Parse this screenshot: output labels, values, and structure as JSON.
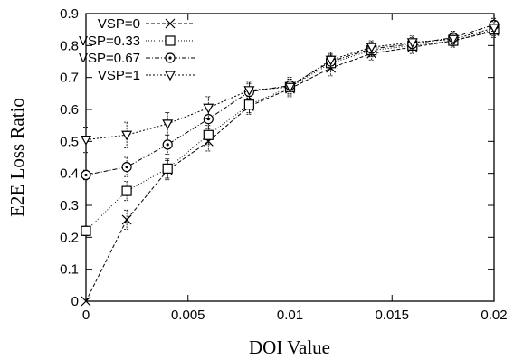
{
  "chart_data": {
    "type": "line",
    "title": "",
    "xlabel": "DOI Value",
    "ylabel": "E2E Loss Ratio",
    "xlim": [
      0,
      0.02
    ],
    "ylim": [
      0,
      0.9
    ],
    "x_ticks": [
      "0",
      "0.005",
      "0.01",
      "0.015",
      "0.02"
    ],
    "x_tick_values": [
      0,
      0.005,
      0.01,
      0.015,
      0.02
    ],
    "y_ticks": [
      "0",
      "0.1",
      "0.2",
      "0.3",
      "0.4",
      "0.5",
      "0.6",
      "0.7",
      "0.8",
      "0.9"
    ],
    "y_tick_values": [
      0,
      0.1,
      0.2,
      0.3,
      0.4,
      0.5,
      0.6,
      0.7,
      0.8,
      0.9
    ],
    "grid": false,
    "legend_position": "top-left",
    "x": [
      0,
      0.002,
      0.004,
      0.006,
      0.008,
      0.01,
      0.012,
      0.014,
      0.016,
      0.018,
      0.02
    ],
    "series": [
      {
        "name": "VSP=0",
        "marker": "x",
        "dash": "4,2",
        "values": [
          0.0,
          0.255,
          0.41,
          0.5,
          0.61,
          0.665,
          0.73,
          0.775,
          0.795,
          0.815,
          0.845
        ],
        "errors": [
          0.0,
          0.03,
          0.03,
          0.03,
          0.025,
          0.025,
          0.025,
          0.02,
          0.02,
          0.02,
          0.02
        ]
      },
      {
        "name": "VSP=0.33",
        "marker": "square",
        "dash": "1,2",
        "values": [
          0.22,
          0.345,
          0.415,
          0.52,
          0.615,
          0.67,
          0.745,
          0.785,
          0.8,
          0.815,
          0.85
        ],
        "errors": [
          0.015,
          0.03,
          0.03,
          0.03,
          0.025,
          0.025,
          0.025,
          0.02,
          0.02,
          0.02,
          0.02
        ]
      },
      {
        "name": "VSP=0.67",
        "marker": "circle",
        "dash": "5,2,1,2",
        "values": [
          0.395,
          0.42,
          0.49,
          0.57,
          0.655,
          0.675,
          0.75,
          0.79,
          0.805,
          0.825,
          0.865
        ],
        "errors": [
          0.015,
          0.03,
          0.03,
          0.03,
          0.025,
          0.025,
          0.025,
          0.02,
          0.02,
          0.02,
          0.02
        ]
      },
      {
        "name": "VSP=1",
        "marker": "triangle-down",
        "dash": "2,2",
        "values": [
          0.505,
          0.52,
          0.555,
          0.605,
          0.66,
          0.67,
          0.755,
          0.795,
          0.81,
          0.82,
          0.855
        ],
        "errors": [
          0.04,
          0.04,
          0.035,
          0.035,
          0.025,
          0.025,
          0.025,
          0.02,
          0.02,
          0.02,
          0.02
        ]
      }
    ]
  }
}
